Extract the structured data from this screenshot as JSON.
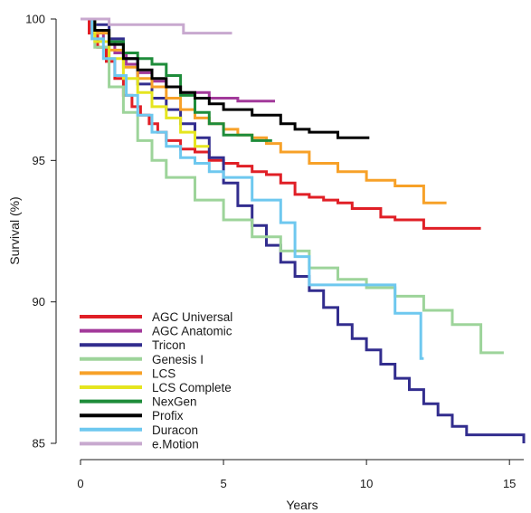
{
  "chart_data": {
    "type": "line",
    "step": true,
    "title": "",
    "xlabel": "Years",
    "ylabel": "Survival (%)",
    "xlim": [
      0,
      15.5
    ],
    "ylim": [
      85,
      100
    ],
    "xticks": [
      0,
      5,
      10,
      15
    ],
    "yticks": [
      85,
      90,
      95,
      100
    ],
    "grid": false,
    "legend_position": "bottom-left",
    "series": [
      {
        "name": "AGC Universal",
        "color": "#e01f26",
        "x": [
          0,
          0.3,
          0.6,
          0.9,
          1.2,
          1.5,
          1.8,
          2.1,
          2.4,
          2.7,
          3.0,
          3.5,
          4.0,
          4.5,
          5.0,
          5.5,
          6.0,
          6.5,
          7.0,
          7.5,
          8.0,
          8.5,
          9.0,
          9.5,
          10.5,
          11.0,
          12.0,
          14.0
        ],
        "y": [
          100,
          99.5,
          99.0,
          98.5,
          97.9,
          97.3,
          96.9,
          96.6,
          96.3,
          96.0,
          95.7,
          95.4,
          95.3,
          95.0,
          94.9,
          94.8,
          94.6,
          94.5,
          94.2,
          93.8,
          93.7,
          93.6,
          93.5,
          93.3,
          93.0,
          92.9,
          92.6,
          92.6
        ]
      },
      {
        "name": "AGC Anatomic",
        "color": "#a2399a",
        "x": [
          0,
          0.4,
          0.8,
          1.2,
          1.6,
          2.0,
          2.5,
          3.0,
          3.5,
          4.5,
          5.5,
          6.8
        ],
        "y": [
          100,
          99.6,
          99.2,
          98.8,
          98.4,
          98.1,
          97.8,
          97.6,
          97.4,
          97.2,
          97.1,
          97.1
        ]
      },
      {
        "name": "Tricon",
        "color": "#322d8e",
        "x": [
          0,
          0.5,
          1.0,
          1.5,
          2.0,
          2.5,
          3.0,
          3.5,
          4.0,
          4.5,
          5.0,
          5.5,
          6.0,
          6.5,
          7.0,
          7.5,
          8.0,
          8.5,
          9.0,
          9.5,
          10.0,
          10.5,
          11.0,
          11.5,
          12.0,
          12.5,
          13.0,
          13.5,
          15.5
        ],
        "y": [
          100,
          99.8,
          99.3,
          98.6,
          97.7,
          97.2,
          96.8,
          96.3,
          95.8,
          95.1,
          94.2,
          93.4,
          92.7,
          92.0,
          91.4,
          90.9,
          90.4,
          89.8,
          89.2,
          88.7,
          88.3,
          87.8,
          87.3,
          86.9,
          86.4,
          86.0,
          85.6,
          85.3,
          85.0
        ]
      },
      {
        "name": "Genesis I",
        "color": "#9dd49a",
        "x": [
          0,
          0.5,
          1.0,
          1.5,
          2.0,
          2.5,
          3.0,
          4.0,
          5.0,
          6.0,
          7.0,
          8.0,
          9.0,
          10.0,
          11.0,
          12.0,
          13.0,
          14.0,
          14.8
        ],
        "y": [
          100,
          99.0,
          97.6,
          96.7,
          95.7,
          95.0,
          94.4,
          93.6,
          92.9,
          92.3,
          91.8,
          91.2,
          90.8,
          90.5,
          90.2,
          89.7,
          89.2,
          88.2,
          88.2
        ]
      },
      {
        "name": "LCS",
        "color": "#f7a128",
        "x": [
          0,
          0.5,
          1.0,
          1.5,
          2.0,
          2.5,
          3.0,
          3.5,
          4.0,
          4.5,
          5.0,
          5.5,
          6.0,
          6.5,
          7.0,
          8.0,
          9.0,
          10.0,
          11.0,
          12.0,
          12.8
        ],
        "y": [
          100,
          99.5,
          98.9,
          98.3,
          97.9,
          97.6,
          97.2,
          96.8,
          96.5,
          96.3,
          96.1,
          95.9,
          95.8,
          95.6,
          95.3,
          94.9,
          94.6,
          94.3,
          94.1,
          93.5,
          93.5
        ]
      },
      {
        "name": "LCS Complete",
        "color": "#e5e51f",
        "x": [
          0,
          0.5,
          1.0,
          1.5,
          2.0,
          2.5,
          3.0,
          3.5,
          4.0,
          4.5
        ],
        "y": [
          100,
          99.2,
          98.6,
          97.9,
          97.4,
          96.9,
          96.5,
          96.0,
          95.5,
          95.5
        ]
      },
      {
        "name": "NexGen",
        "color": "#1e8c3a",
        "x": [
          0,
          0.5,
          1.0,
          1.5,
          2.0,
          2.5,
          3.0,
          3.5,
          4.0,
          4.5,
          5.0,
          6.0,
          6.7
        ],
        "y": [
          100,
          99.6,
          99.2,
          98.8,
          98.6,
          98.4,
          98.0,
          97.3,
          96.7,
          96.3,
          95.9,
          95.7,
          95.7
        ]
      },
      {
        "name": "Profix",
        "color": "#000000",
        "x": [
          0,
          0.5,
          1.0,
          1.5,
          2.0,
          2.5,
          3.0,
          3.5,
          4.0,
          4.5,
          5.0,
          6.0,
          7.0,
          7.5,
          8.0,
          9.0,
          10.1
        ],
        "y": [
          100,
          99.6,
          99.1,
          98.6,
          98.2,
          97.9,
          97.6,
          97.4,
          97.2,
          97.0,
          96.8,
          96.6,
          96.3,
          96.1,
          96.0,
          95.8,
          95.8
        ]
      },
      {
        "name": "Duracon",
        "color": "#6ec8ef",
        "x": [
          0,
          0.4,
          0.8,
          1.2,
          1.6,
          2.0,
          2.5,
          3.0,
          3.5,
          4.0,
          4.5,
          5.0,
          6.0,
          7.0,
          7.5,
          8.0,
          11.0,
          11.2,
          11.9,
          12.0
        ],
        "y": [
          100,
          99.3,
          98.6,
          98.0,
          97.3,
          96.6,
          96.0,
          95.5,
          95.1,
          94.9,
          94.6,
          94.4,
          93.6,
          92.8,
          91.6,
          90.6,
          89.6,
          89.6,
          88.0,
          88.0
        ]
      },
      {
        "name": "e.Motion",
        "color": "#c8a9cf",
        "x": [
          0,
          1.0,
          3.6,
          5.3
        ],
        "y": [
          100,
          99.8,
          99.5,
          99.5
        ]
      }
    ]
  }
}
